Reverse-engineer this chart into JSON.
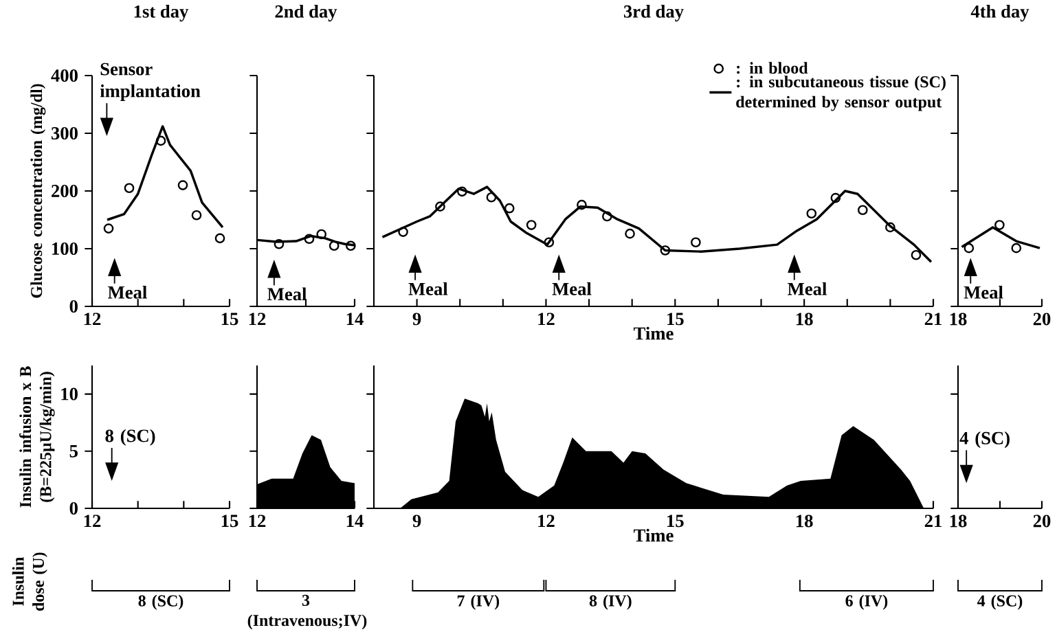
{
  "chart_data": [
    {
      "type": "line",
      "title": "1st day",
      "ylabel": "Glucose concentration (mg/dl)",
      "xlim": [
        12,
        15
      ],
      "xticks": [
        12,
        {
          "value": 13,
          "label": null
        },
        {
          "value": 14,
          "label": null
        },
        15
      ],
      "ylim": [
        0,
        400
      ],
      "yticks": [
        0,
        100,
        200,
        300,
        400
      ],
      "series": [
        {
          "type": "scatter",
          "marker": "circle",
          "color": "#000000",
          "x": [
            12.36,
            12.81,
            13.5,
            13.98,
            14.28,
            14.79
          ],
          "values": [
            135,
            205,
            287,
            210,
            158,
            118
          ]
        },
        {
          "type": "line",
          "color": "#000000",
          "x": [
            12.33,
            12.7,
            13.0,
            13.3,
            13.54,
            13.7,
            14.15,
            14.4,
            14.85
          ],
          "values": [
            150,
            160,
            195,
            262,
            312,
            280,
            235,
            180,
            137
          ]
        }
      ],
      "annotations": [
        "Sensor implantation",
        "Meal"
      ]
    },
    {
      "type": "line",
      "title": "2nd day",
      "xlim": [
        12,
        14
      ],
      "xticks": [
        12,
        {
          "value": 13,
          "label": null
        },
        14
      ],
      "ylim": [
        0,
        400
      ],
      "yticks": [
        0,
        100,
        200,
        300,
        400
      ],
      "tick_labels": "x",
      "series": [
        {
          "type": "scatter",
          "marker": "circle",
          "color": "#000000",
          "x": [
            12.45,
            13.07,
            13.32,
            13.58,
            13.92
          ],
          "values": [
            108,
            117,
            125,
            105,
            105
          ]
        },
        {
          "type": "line",
          "color": "#000000",
          "x": [
            12.0,
            12.4,
            12.8,
            13.1,
            13.4,
            13.6,
            13.8,
            14.0
          ],
          "values": [
            115,
            112,
            113,
            122,
            118,
            112,
            108,
            106
          ]
        }
      ],
      "annotations": [
        "Meal"
      ]
    },
    {
      "type": "line",
      "title": "3rd day",
      "xlabel": "Time",
      "legend": "top right",
      "xlim": [
        8,
        21
      ],
      "xticks": [
        9,
        {
          "value": 10,
          "label": null
        },
        {
          "value": 11,
          "label": null
        },
        12,
        {
          "value": 13,
          "label": null
        },
        {
          "value": 14,
          "label": null
        },
        15,
        {
          "value": 16,
          "label": null
        },
        {
          "value": 17,
          "label": null
        },
        18,
        {
          "value": 19,
          "label": null
        },
        {
          "value": 20,
          "label": null
        },
        21
      ],
      "ylim": [
        0,
        400
      ],
      "yticks": [
        0,
        100,
        200,
        300,
        400
      ],
      "tick_labels": "x",
      "series": [
        {
          "type": "scatter",
          "name": ": in blood",
          "marker": "circle",
          "color": "#000000",
          "x": [
            8.68,
            9.54,
            10.05,
            10.73,
            11.15,
            11.66,
            12.07,
            12.83,
            13.42,
            13.95,
            14.77,
            15.48,
            18.17,
            18.73,
            19.36,
            20.0,
            20.6
          ],
          "values": [
            129,
            173,
            199,
            189,
            170,
            141,
            111,
            176,
            156,
            126,
            97,
            111,
            161,
            188,
            167,
            137,
            89
          ]
        },
        {
          "type": "line",
          "name": ": in subcutaneous tissue  (SC) determined by sensor output",
          "color": "#000000",
          "x": [
            8.2,
            9.0,
            9.3,
            9.97,
            10.32,
            10.63,
            10.93,
            11.18,
            11.53,
            12.03,
            12.45,
            12.8,
            13.2,
            13.66,
            14.16,
            14.77,
            15.6,
            16.5,
            17.37,
            17.83,
            18.29,
            18.95,
            19.24,
            20.0,
            20.55,
            20.95
          ],
          "values": [
            120,
            147,
            156,
            204,
            195,
            207,
            183,
            147,
            128,
            107,
            151,
            173,
            171,
            151,
            135,
            97,
            95,
            100,
            107,
            131,
            151,
            200,
            195,
            139,
            107,
            77
          ]
        }
      ],
      "annotations": [
        "Meal",
        "Meal",
        "Meal"
      ]
    },
    {
      "type": "line",
      "title": "4th day",
      "xlim": [
        18,
        20
      ],
      "xticks": [
        18,
        {
          "value": 19,
          "label": null
        },
        20
      ],
      "ylim": [
        0,
        400
      ],
      "yticks": [
        0,
        100,
        200,
        300,
        400
      ],
      "tick_labels": "x",
      "series": [
        {
          "type": "scatter",
          "marker": "circle",
          "color": "#000000",
          "x": [
            18.26,
            18.99,
            19.39
          ],
          "values": [
            101,
            141,
            101
          ]
        },
        {
          "type": "line",
          "color": "#000000",
          "x": [
            18.09,
            18.83,
            19.39,
            19.95
          ],
          "values": [
            103,
            137,
            113,
            101
          ]
        }
      ],
      "annotations": [
        "Meal"
      ]
    },
    {
      "type": "area",
      "ylabel": "Insulin infusion x B (B=225µU/kg/min)",
      "xlim": [
        12,
        15
      ],
      "xticks": [
        12,
        {
          "value": 13,
          "label": null
        },
        {
          "value": 14,
          "label": null
        },
        15
      ],
      "ylim": [
        0,
        12.5
      ],
      "yticks": [
        0,
        5,
        10
      ],
      "annotations": [
        "8 (SC)",
        "8 (SC)",
        "Insulin dose (U)"
      ]
    },
    {
      "type": "area",
      "xlim": [
        12,
        14
      ],
      "xticks": [
        12,
        {
          "value": 13,
          "label": null
        },
        14
      ],
      "ylim": [
        0,
        12.5
      ],
      "yticks": [
        0,
        5,
        10
      ],
      "tick_labels": "x",
      "series": [
        {
          "color": "#000000",
          "x": [
            12.0,
            12.3,
            12.74,
            12.93,
            13.12,
            13.31,
            13.5,
            13.73,
            14.0
          ],
          "values": [
            2.1,
            2.6,
            2.6,
            4.8,
            6.4,
            6.0,
            3.6,
            2.4,
            2.2
          ]
        }
      ],
      "annotations": [
        "3 (Intravenous;IV)"
      ]
    },
    {
      "type": "area",
      "xlabel": "Time",
      "xlim": [
        8,
        21
      ],
      "xticks": [
        9,
        {
          "value": 10,
          "label": null
        },
        {
          "value": 11,
          "label": null
        },
        12,
        {
          "value": 13,
          "label": null
        },
        {
          "value": 14,
          "label": null
        },
        15,
        {
          "value": 16,
          "label": null
        },
        {
          "value": 17,
          "label": null
        },
        18,
        {
          "value": 19,
          "label": null
        },
        {
          "value": 20,
          "label": null
        },
        21
      ],
      "ylim": [
        0,
        12.5
      ],
      "yticks": [
        0,
        5,
        10
      ],
      "tick_labels": "x",
      "series": [
        {
          "color": "#000000",
          "x": [
            8.61,
            8.87,
            9.49,
            9.75,
            9.9,
            10.11,
            10.42,
            10.5,
            10.58,
            10.63,
            10.68,
            10.74,
            10.84,
            11.05,
            11.45,
            11.82,
            12.19,
            12.4,
            12.61,
            12.93,
            13.52,
            13.8,
            14.0,
            14.31,
            14.73,
            15.26,
            16.12,
            17.18,
            17.6,
            17.92,
            18.61,
            18.87,
            19.14,
            19.62,
            20.25,
            20.46,
            20.78
          ],
          "values": [
            0,
            0.8,
            1.4,
            2.4,
            7.6,
            9.6,
            9.2,
            9.0,
            8.0,
            9.2,
            7.6,
            8.4,
            6.0,
            3.2,
            1.6,
            1.0,
            2.0,
            4.0,
            6.2,
            5.0,
            5.0,
            4.0,
            5.0,
            4.8,
            3.4,
            2.2,
            1.2,
            1.0,
            2.0,
            2.4,
            2.6,
            6.4,
            7.2,
            6.0,
            3.4,
            2.4,
            0
          ]
        }
      ],
      "annotations": [
        "7 (IV)",
        "8 (IV)",
        "6 (IV)"
      ]
    },
    {
      "type": "area",
      "xlim": [
        18,
        20
      ],
      "xticks": [
        18,
        {
          "value": 19,
          "label": null
        },
        20
      ],
      "ylim": [
        0,
        12.5
      ],
      "yticks": [
        0,
        5,
        10
      ],
      "tick_labels": "x",
      "annotations": [
        "4 (SC)",
        "4 (SC)"
      ]
    }
  ]
}
